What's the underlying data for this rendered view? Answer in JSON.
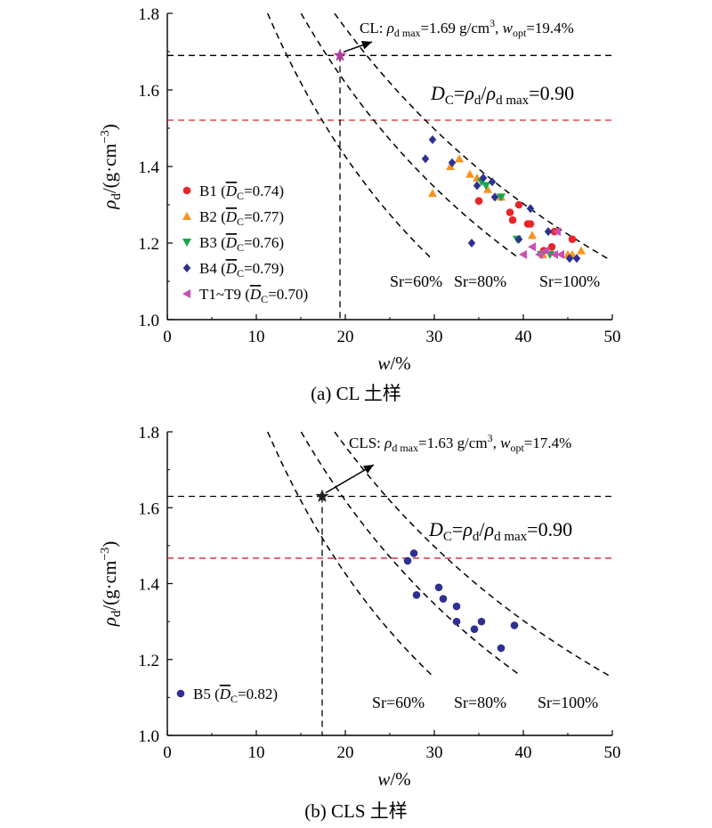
{
  "chart_data": [
    {
      "type": "scatter",
      "caption": "(a) CL 土样",
      "xlabel_sym": "w",
      "xlabel_unit": "/%",
      "ylabel_sym": "ρ",
      "ylabel_sub": "d",
      "ylabel_unit": "/(g·cm",
      "ylabel_exp": "−3",
      "ylabel_close": ")",
      "xlim": [
        0,
        50
      ],
      "ylim": [
        1.0,
        1.8
      ],
      "xticks": [
        "0",
        "10",
        "20",
        "30",
        "40",
        "50"
      ],
      "yticks": [
        "1.0",
        "1.2",
        "1.4",
        "1.6",
        "1.8"
      ],
      "optimum": {
        "x": 19.4,
        "y": 1.69,
        "color": "#b0409c"
      },
      "annotation": {
        "prefix": "CL: ",
        "rho": "ρ",
        "rho_sub": "d max",
        "rho_val": "=1.69 g/cm",
        "rho_exp": "3",
        "sep": ", ",
        "w": "w",
        "w_sub": "opt",
        "w_val": "=19.4%"
      },
      "dc_label": {
        "D": "D",
        "D_sub": "C",
        "eq1": "=",
        "rho1": "ρ",
        "rho1_sub": "d",
        "slash": "/",
        "rho2": "ρ",
        "rho2_sub": "d max",
        "val": "=0.90"
      },
      "dc_line_y": 1.521,
      "sr_curves": [
        {
          "sr": 0.6,
          "label": "Sr=60%"
        },
        {
          "sr": 0.8,
          "label": "Sr=80%"
        },
        {
          "sr": 1.0,
          "label": "Sr=100%"
        }
      ],
      "series": [
        {
          "name": "B1",
          "dc": "0.74",
          "marker": "circle",
          "color": "#e8262a",
          "points": [
            [
              35,
              1.31
            ],
            [
              38.5,
              1.28
            ],
            [
              38.8,
              1.26
            ],
            [
              39.5,
              1.3
            ],
            [
              40.5,
              1.25
            ],
            [
              40.8,
              1.25
            ],
            [
              43.5,
              1.23
            ],
            [
              45.5,
              1.21
            ],
            [
              42.3,
              1.18
            ],
            [
              43.2,
              1.19
            ]
          ]
        },
        {
          "name": "B2",
          "dc": "0.77",
          "marker": "triangle-up",
          "color": "#f7931e",
          "points": [
            [
              29.8,
              1.33
            ],
            [
              31.8,
              1.4
            ],
            [
              32.8,
              1.42
            ],
            [
              34,
              1.38
            ],
            [
              34.8,
              1.37
            ],
            [
              36,
              1.34
            ],
            [
              37.5,
              1.32
            ],
            [
              41,
              1.22
            ],
            [
              42.2,
              1.17
            ],
            [
              45,
              1.17
            ],
            [
              45.5,
              1.17
            ],
            [
              46.5,
              1.18
            ]
          ]
        },
        {
          "name": "B3",
          "dc": "0.76",
          "marker": "triangle-down",
          "color": "#1aa64b",
          "points": [
            [
              35.3,
              1.36
            ],
            [
              35.8,
              1.35
            ],
            [
              37.5,
              1.32
            ],
            [
              39.3,
              1.21
            ],
            [
              42,
              1.17
            ],
            [
              43,
              1.17
            ]
          ]
        },
        {
          "name": "B4",
          "dc": "0.79",
          "marker": "diamond",
          "color": "#2e3092",
          "points": [
            [
              29.8,
              1.47
            ],
            [
              29,
              1.42
            ],
            [
              32,
              1.41
            ],
            [
              34.8,
              1.35
            ],
            [
              35.5,
              1.37
            ],
            [
              36.5,
              1.36
            ],
            [
              36.8,
              1.32
            ],
            [
              40.8,
              1.29
            ],
            [
              39.5,
              1.21
            ],
            [
              34.2,
              1.2
            ],
            [
              42.8,
              1.23
            ],
            [
              45.2,
              1.16
            ],
            [
              46,
              1.16
            ]
          ]
        },
        {
          "name": "T1~T9",
          "dc": "0.70",
          "marker": "triangle-left",
          "color": "#c94fb4",
          "points": [
            [
              40,
              1.17
            ],
            [
              41,
              1.19
            ],
            [
              41.8,
              1.17
            ],
            [
              42.5,
              1.18
            ],
            [
              43.5,
              1.17
            ],
            [
              43.8,
              1.23
            ],
            [
              44.2,
              1.17
            ]
          ]
        }
      ],
      "legend_prefix": " (",
      "legend_d": "D",
      "legend_sub": "C",
      "legend_suffix": ")"
    },
    {
      "type": "scatter",
      "caption": "(b) CLS 土样",
      "xlabel_sym": "w",
      "xlabel_unit": "/%",
      "ylabel_sym": "ρ",
      "ylabel_sub": "d",
      "ylabel_unit": "/(g·cm",
      "ylabel_exp": "−3",
      "ylabel_close": ")",
      "xlim": [
        0,
        50
      ],
      "ylim": [
        1.0,
        1.8
      ],
      "xticks": [
        "0",
        "10",
        "20",
        "30",
        "40",
        "50"
      ],
      "yticks": [
        "1.0",
        "1.2",
        "1.4",
        "1.6",
        "1.8"
      ],
      "optimum": {
        "x": 17.4,
        "y": 1.63,
        "color": "#222222"
      },
      "annotation": {
        "prefix": "CLS: ",
        "rho": "ρ",
        "rho_sub": "d max",
        "rho_val": "=1.63 g/cm",
        "rho_exp": "3",
        "sep": ", ",
        "w": "w",
        "w_sub": "opt",
        "w_val": "=17.4%"
      },
      "dc_label": {
        "D": "D",
        "D_sub": "C",
        "eq1": "=",
        "rho1": "ρ",
        "rho1_sub": "d",
        "slash": "/",
        "rho2": "ρ",
        "rho2_sub": "d max",
        "val": "=0.90"
      },
      "dc_line_y": 1.467,
      "sr_curves": [
        {
          "sr": 0.6,
          "label": "Sr=60%"
        },
        {
          "sr": 0.8,
          "label": "Sr=80%"
        },
        {
          "sr": 1.0,
          "label": "Sr=100%"
        }
      ],
      "series": [
        {
          "name": "B5",
          "dc": "0.82",
          "marker": "circle",
          "color": "#2e3092",
          "points": [
            [
              27,
              1.46
            ],
            [
              27.7,
              1.48
            ],
            [
              28,
              1.37
            ],
            [
              30.5,
              1.39
            ],
            [
              31,
              1.36
            ],
            [
              32.5,
              1.3
            ],
            [
              32.5,
              1.34
            ],
            [
              34.5,
              1.28
            ],
            [
              35.3,
              1.3
            ],
            [
              37.5,
              1.23
            ],
            [
              39,
              1.29
            ]
          ]
        }
      ],
      "legend_prefix": " (",
      "legend_d": "D",
      "legend_sub": "C",
      "legend_suffix": ")"
    }
  ]
}
